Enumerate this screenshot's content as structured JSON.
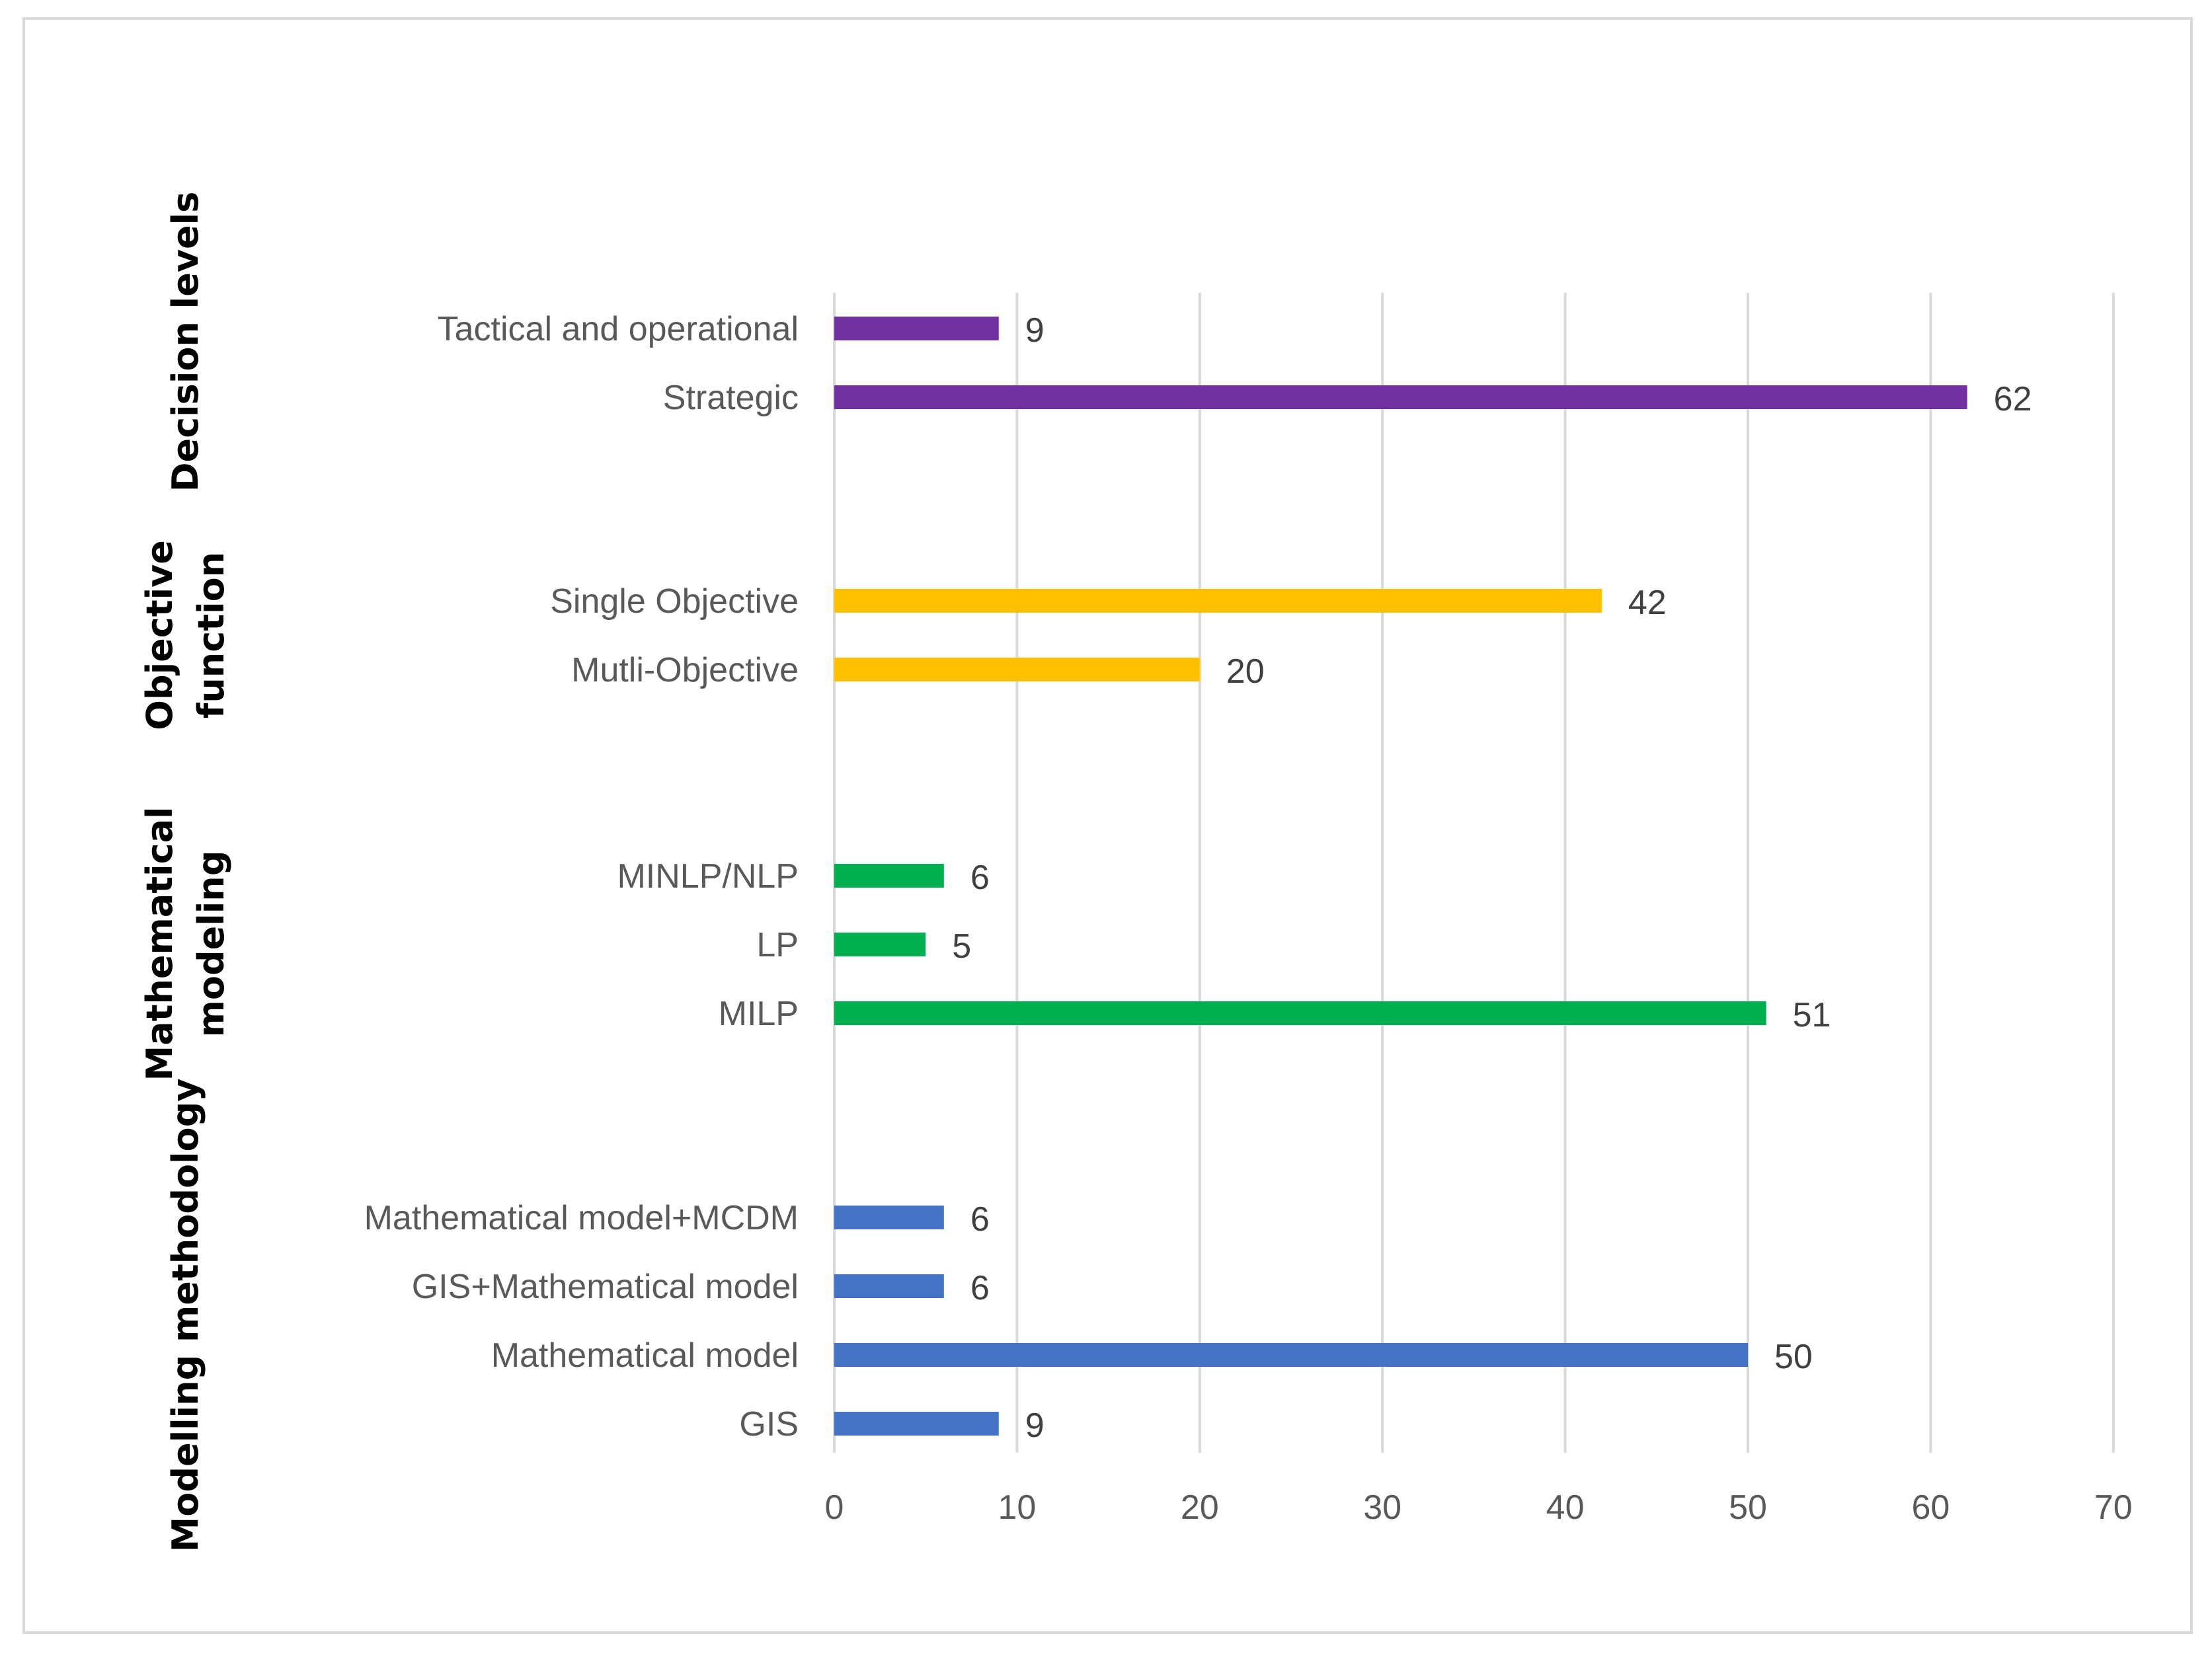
{
  "chart_data": {
    "type": "bar",
    "orientation": "horizontal",
    "title": "",
    "xlabel": "",
    "ylabel": "",
    "xlim": [
      0,
      70
    ],
    "ticks": [
      "0",
      "10",
      "20",
      "30",
      "40",
      "50",
      "60",
      "70"
    ],
    "grid": true,
    "groups": [
      {
        "name": "Decision levels",
        "lines": [
          "Decision levels"
        ],
        "color": "#7030a0",
        "categories": [
          "Tactical and operational",
          "Strategic"
        ],
        "values": [
          9,
          62
        ]
      },
      {
        "name": "Objective function",
        "lines": [
          "Objective",
          "function"
        ],
        "color": "#ffc000",
        "categories": [
          "Single Objective",
          "Mutli-Objective"
        ],
        "values": [
          42,
          20
        ]
      },
      {
        "name": "Mathematical modeling",
        "lines": [
          "Mathematical",
          "modeling"
        ],
        "color": "#00b050",
        "categories": [
          "MINLP/NLP",
          "LP",
          "MILP"
        ],
        "values": [
          6,
          5,
          51
        ]
      },
      {
        "name": "Modelling methodology",
        "lines": [
          "Modelling methodology"
        ],
        "color": "#4472c4",
        "categories": [
          "Mathematical model+MCDM",
          "GIS+Mathematical model",
          "Mathematical model",
          "GIS"
        ],
        "values": [
          6,
          6,
          50,
          9
        ]
      }
    ]
  }
}
